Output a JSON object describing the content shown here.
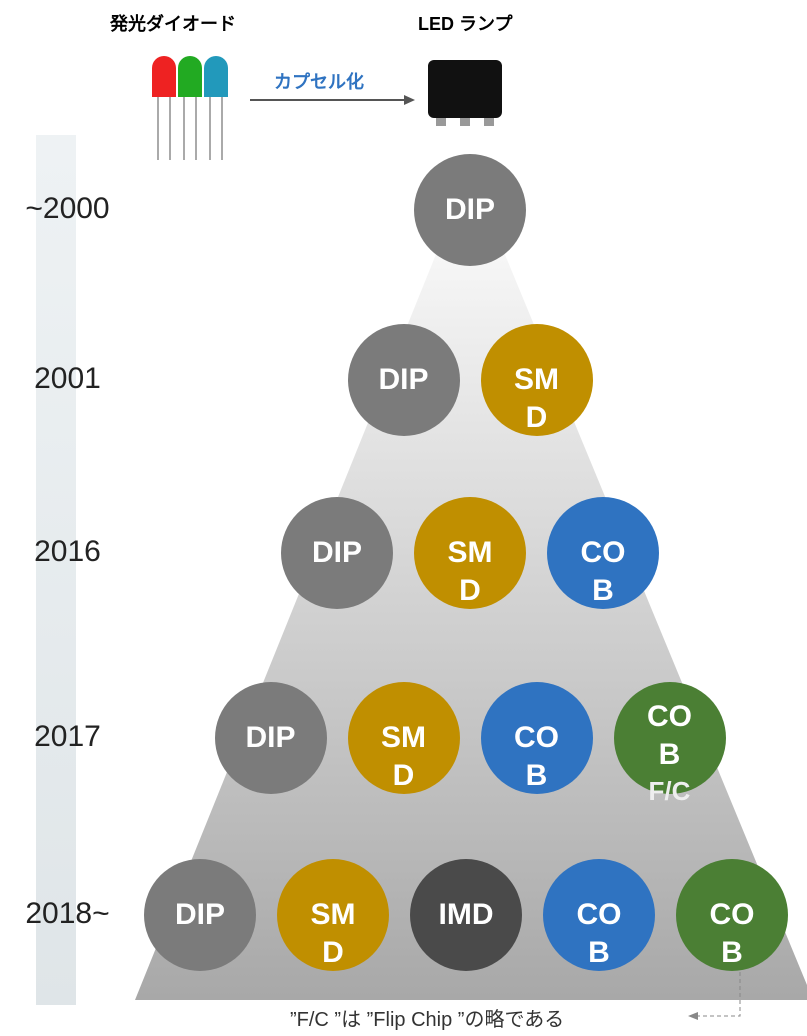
{
  "header": {
    "diode": "発光ダイオード",
    "lamp": "LED ランプ",
    "arrow": "カプセル化"
  },
  "rows": [
    {
      "year": "~2000",
      "items": [
        {
          "label": "DIP",
          "color": "#7b7b7b"
        }
      ]
    },
    {
      "year": "2001",
      "items": [
        {
          "label": "DIP",
          "color": "#7b7b7b"
        },
        {
          "label": "SMD",
          "color": "#c08f00"
        }
      ]
    },
    {
      "year": "2016",
      "items": [
        {
          "label": "DIP",
          "color": "#7b7b7b"
        },
        {
          "label": "SMD",
          "color": "#c08f00"
        },
        {
          "label": "COB",
          "color": "#2f73c1"
        }
      ]
    },
    {
      "year": "2017",
      "items": [
        {
          "label": "DIP",
          "color": "#7b7b7b"
        },
        {
          "label": "SMD",
          "color": "#c08f00"
        },
        {
          "label": "COB",
          "color": "#2f73c1"
        },
        {
          "label": "COB",
          "sub": "F/C",
          "color": "#4b7f34"
        }
      ]
    },
    {
      "year": "2018~",
      "items": [
        {
          "label": "DIP",
          "color": "#7b7b7b"
        },
        {
          "label": "SMD",
          "color": "#c08f00"
        },
        {
          "label": "IMD",
          "color": "#4a4a4a"
        },
        {
          "label": "COB",
          "color": "#2f73c1"
        },
        {
          "label": "COB",
          "color": "#4b7f34"
        }
      ]
    }
  ],
  "note": "”F/C ”は ”Flip Chip ”の略である"
}
